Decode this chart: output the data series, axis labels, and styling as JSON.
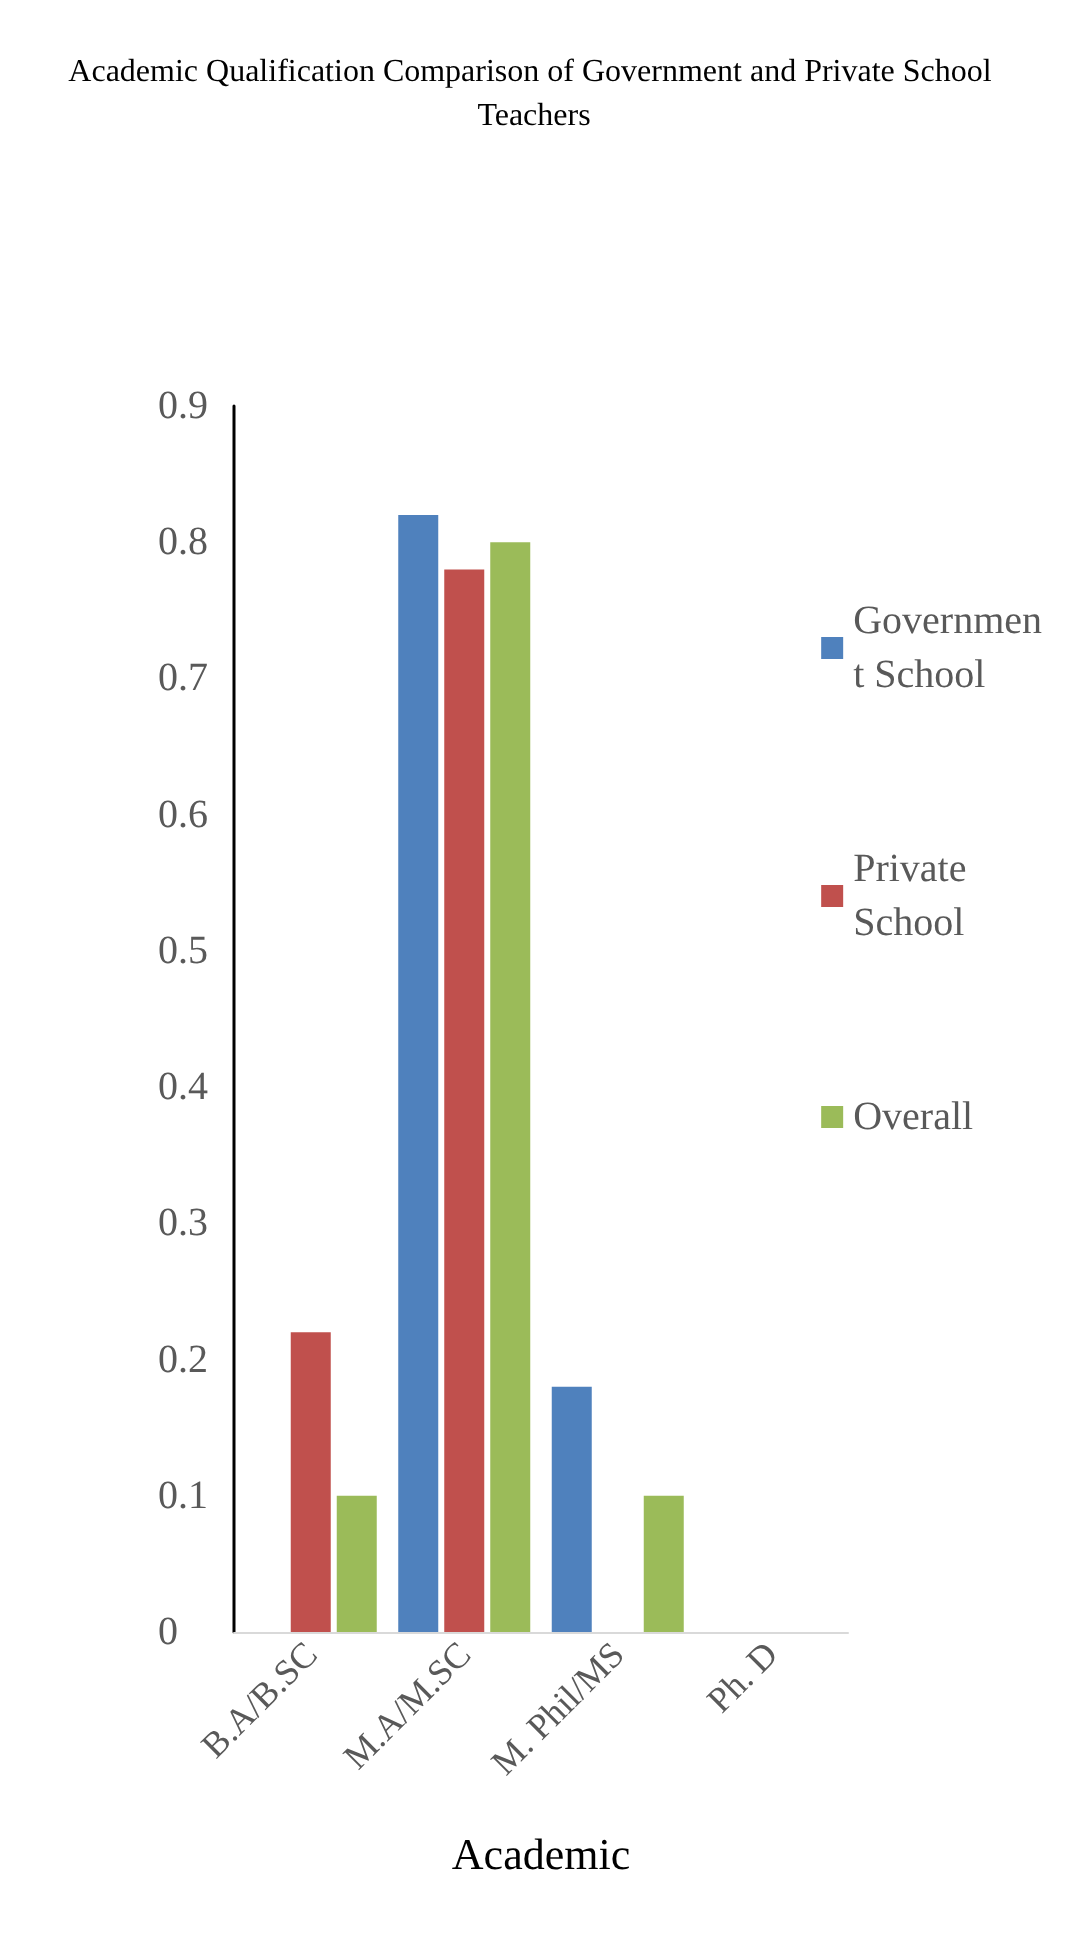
{
  "chart_data": {
    "type": "bar",
    "title": "Academic Qualification Comparison of Government and Private School Teachers",
    "xlabel": "Academic",
    "categories": [
      "B.A/B.SC",
      "M.A/M.SC",
      "M. Phil/MS",
      "Ph. D"
    ],
    "series": [
      {
        "name": "Government School",
        "color": "#4f81bd",
        "values": [
          0,
          0.82,
          0.18,
          0
        ]
      },
      {
        "name": "Private School",
        "color": "#c0504d",
        "values": [
          0.22,
          0.78,
          0,
          0
        ]
      },
      {
        "name": "Overall",
        "color": "#9bbb59",
        "values": [
          0.1,
          0.8,
          0.1,
          0
        ]
      }
    ],
    "ylim": [
      0,
      0.9
    ],
    "yticks": [
      0,
      0.1,
      0.2,
      0.3,
      0.4,
      0.5,
      0.6,
      0.7,
      0.8,
      0.9
    ],
    "grid": false,
    "legend": "right"
  }
}
